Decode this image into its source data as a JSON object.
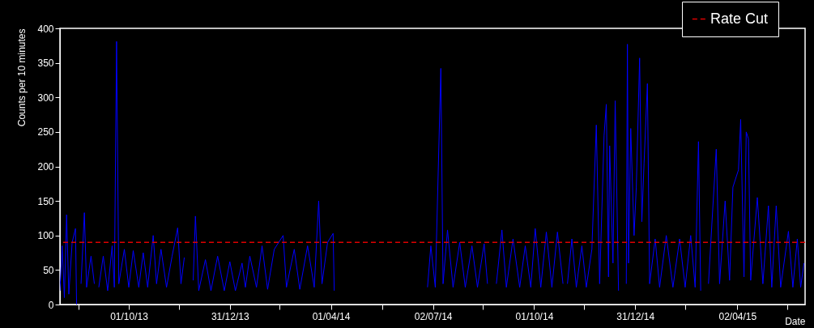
{
  "chart_data": {
    "type": "line",
    "xlabel": "Date",
    "ylabel": "Counts per 10 minutes",
    "x": [
      "2013-07-31",
      "2013-08-02",
      "2013-08-04",
      "2013-08-06",
      "2013-08-08",
      "2013-08-11",
      "2013-08-14",
      "2013-08-15",
      "2013-08-17",
      "2013-08-19",
      "2013-08-22",
      "2013-08-24",
      "2013-08-28",
      "2013-08-31",
      "2013-09-03",
      "2013-09-04",
      "2013-09-08",
      "2013-09-12",
      "2013-09-16",
      "2013-09-18",
      "2013-09-20",
      "2013-09-22",
      "2013-09-27",
      "2013-10-01",
      "2013-10-05",
      "2013-10-10",
      "2013-10-14",
      "2013-10-18",
      "2013-10-23",
      "2013-10-26",
      "2013-10-30",
      "2013-11-04",
      "2013-11-09",
      "2013-11-14",
      "2013-11-17",
      "2013-11-20",
      "2013-11-24",
      "2013-11-28",
      "2013-11-30",
      "2013-12-03",
      "2013-12-09",
      "2013-12-14",
      "2013-12-20",
      "2013-12-26",
      "2013-12-31",
      "2014-01-05",
      "2014-01-11",
      "2014-01-14",
      "2014-01-18",
      "2014-01-24",
      "2014-01-29",
      "2014-02-03",
      "2014-02-09",
      "2014-02-17",
      "2014-02-20",
      "2014-02-27",
      "2014-03-04",
      "2014-03-11",
      "2014-03-17",
      "2014-03-21",
      "2014-03-24",
      "2014-03-29",
      "2014-04-03",
      "2014-04-04",
      "2014-04-15",
      "2014-06-27",
      "2014-06-30",
      "2014-07-04",
      "2014-07-09",
      "2014-07-11",
      "2014-07-15",
      "2014-07-20",
      "2014-07-26",
      "2014-07-31",
      "2014-08-06",
      "2014-08-11",
      "2014-08-17",
      "2014-08-20",
      "2014-08-25",
      "2014-08-28",
      "2014-09-02",
      "2014-09-06",
      "2014-09-12",
      "2014-09-18",
      "2014-09-23",
      "2014-09-28",
      "2014-10-02",
      "2014-10-07",
      "2014-10-12",
      "2014-10-17",
      "2014-10-22",
      "2014-10-27",
      "2014-10-29",
      "2014-10-31",
      "2014-11-04",
      "2014-11-08",
      "2014-11-13",
      "2014-11-17",
      "2014-11-22",
      "2014-11-26",
      "2014-11-29",
      "2014-12-03",
      "2014-12-05",
      "2014-12-07",
      "2014-12-08",
      "2014-12-11",
      "2014-12-13",
      "2014-12-16",
      "2014-12-20",
      "2014-12-23",
      "2014-12-24",
      "2014-12-25",
      "2014-12-27",
      "2014-12-30",
      "2015-01-01",
      "2015-01-04",
      "2015-01-06",
      "2015-01-08",
      "2015-01-11",
      "2015-01-13",
      "2015-01-18",
      "2015-01-22",
      "2015-01-28",
      "2015-02-03",
      "2015-02-09",
      "2015-02-14",
      "2015-02-19",
      "2015-02-23",
      "2015-02-26",
      "2015-02-28",
      "2015-03-02",
      "2015-03-07",
      "2015-03-10",
      "2015-03-14",
      "2015-03-17",
      "2015-03-22",
      "2015-03-26",
      "2015-03-29",
      "2015-04-03",
      "2015-04-05",
      "2015-04-08",
      "2015-04-10",
      "2015-04-12",
      "2015-04-14",
      "2015-04-20",
      "2015-04-25",
      "2015-04-30",
      "2015-05-03",
      "2015-05-07",
      "2015-05-11",
      "2015-05-18",
      "2015-05-22",
      "2015-05-26",
      "2015-05-29",
      "2015-06-01"
    ],
    "series": [
      {
        "color": "#0000ff",
        "values": [
          20,
          85,
          10,
          130,
          15,
          90,
          110,
          0,
          null,
          30,
          133,
          25,
          70,
          30,
          null,
          25,
          70,
          20,
          85,
          25,
          381,
          30,
          80,
          25,
          78,
          25,
          75,
          25,
          100,
          30,
          80,
          25,
          70,
          111,
          30,
          68,
          null,
          35,
          128,
          20,
          65,
          20,
          70,
          20,
          62,
          20,
          60,
          25,
          70,
          25,
          85,
          22,
          80,
          100,
          25,
          80,
          22,
          85,
          25,
          150,
          30,
          90,
          103,
          20,
          null,
          25,
          85,
          25,
          342,
          30,
          108,
          25,
          90,
          25,
          85,
          25,
          88,
          30,
          null,
          30,
          108,
          25,
          95,
          25,
          85,
          25,
          110,
          25,
          105,
          25,
          105,
          30,
          null,
          30,
          95,
          25,
          85,
          25,
          80,
          260,
          30,
          245,
          290,
          40,
          230,
          60,
          295,
          20,
          null,
          30,
          377,
          60,
          255,
          100,
          170,
          357,
          120,
          205,
          320,
          30,
          95,
          25,
          100,
          25,
          95,
          25,
          100,
          25,
          236,
          20,
          null,
          30,
          115,
          225,
          30,
          150,
          35,
          170,
          195,
          268,
          40,
          250,
          240,
          35,
          155,
          30,
          143,
          25,
          143,
          25,
          106,
          25,
          95,
          25,
          60
        ]
      }
    ],
    "xlim": [
      "2013-07-31",
      "2015-06-02"
    ],
    "xticks": [
      {
        "value": "2013-08-17",
        "label": null
      },
      {
        "value": "2013-10-01",
        "label": "01/10/13"
      },
      {
        "value": "2013-11-15",
        "label": null
      },
      {
        "value": "2013-12-31",
        "label": "31/12/13"
      },
      {
        "value": "2014-02-14",
        "label": null
      },
      {
        "value": "2014-04-01",
        "label": "01/04/14"
      },
      {
        "value": "2014-05-17",
        "label": null
      },
      {
        "value": "2014-07-02",
        "label": "02/07/14"
      },
      {
        "value": "2014-08-16",
        "label": null
      },
      {
        "value": "2014-10-01",
        "label": "01/10/14"
      },
      {
        "value": "2014-11-15",
        "label": null
      },
      {
        "value": "2014-12-31",
        "label": "31/12/14"
      },
      {
        "value": "2015-02-14",
        "label": null
      },
      {
        "value": "2015-04-02",
        "label": "02/04/15"
      },
      {
        "value": "2015-05-17",
        "label": null
      }
    ],
    "ylim": [
      0,
      400
    ],
    "yticks": [
      0,
      50,
      100,
      150,
      200,
      250,
      300,
      350,
      400
    ],
    "ref_lines": [
      {
        "axis": "y",
        "value": 90,
        "label": "Rate Cut",
        "color": "#dd0000",
        "line_style": "dashed"
      }
    ],
    "legend": "top right",
    "grid": false
  }
}
